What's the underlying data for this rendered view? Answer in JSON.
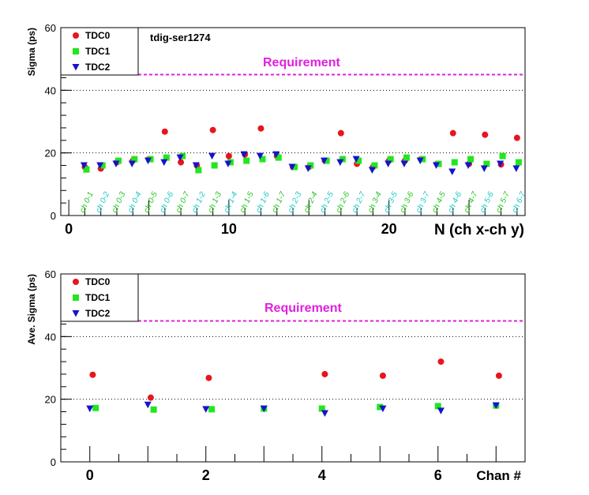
{
  "chart_data": [
    {
      "type": "scatter",
      "title": "tdig-ser1274",
      "xlabel": "N (ch x-ch y)",
      "ylabel": "Sigma (ps)",
      "xlim": [
        -0.5,
        28.5
      ],
      "ylim": [
        0,
        60
      ],
      "x_ticks": [
        0,
        10,
        20
      ],
      "y_ticks": [
        0,
        20,
        40,
        60
      ],
      "grid": "horizontal dotted",
      "legend_position": "top-left",
      "requirement": {
        "label": "Requirement",
        "value": 45,
        "color": "#e020e0"
      },
      "category_labels": [
        "ch 0-1",
        "ch 0-2",
        "ch 0-3",
        "ch 0-4",
        "ch 0-5",
        "ch 0-6",
        "ch 0-7",
        "ch 1-2",
        "ch 1-3",
        "ch 1-4",
        "ch 1-5",
        "ch 1-6",
        "ch 1-7",
        "ch 2-3",
        "ch 2-4",
        "ch 2-5",
        "ch 2-6",
        "ch 2-7",
        "ch 3-4",
        "ch 3-5",
        "ch 3-6",
        "ch 3-7",
        "ch 4-5",
        "ch 4-6",
        "ch 4-7",
        "ch 5-6",
        "ch 5-7",
        "ch 6-7"
      ],
      "category_x": [
        1,
        2,
        3,
        4,
        5,
        6,
        7,
        8,
        9,
        10,
        11,
        12,
        13,
        14,
        15,
        16,
        17,
        18,
        19,
        20,
        21,
        22,
        23,
        24,
        25,
        26,
        27,
        28
      ],
      "series": [
        {
          "name": "TDC0",
          "color": "#e8141e",
          "marker": "circle",
          "x": [
            1,
            2,
            3,
            4,
            5,
            6,
            7,
            8,
            9,
            10,
            11,
            12,
            13,
            14,
            15,
            16,
            17,
            18,
            19,
            20,
            21,
            22,
            23,
            24,
            25,
            26,
            27,
            28
          ],
          "values": [
            15.5,
            15.0,
            17.0,
            17.5,
            18.0,
            26.8,
            17.0,
            16.0,
            27.3,
            19.0,
            19.5,
            27.8,
            19.0,
            15.5,
            15.5,
            17.5,
            26.3,
            16.5,
            15.5,
            17.5,
            17.5,
            18.0,
            16.5,
            26.3,
            16.5,
            25.8,
            16.3,
            24.8
          ]
        },
        {
          "name": "TDC1",
          "color": "#22e61e",
          "marker": "square",
          "x": [
            1.1,
            2.1,
            3.1,
            4.1,
            5.1,
            6.1,
            7.1,
            8.1,
            9.1,
            10.1,
            11.1,
            12.1,
            13.1,
            14.1,
            15.1,
            16.1,
            17.1,
            18.1,
            19.1,
            20.1,
            21.1,
            22.1,
            23.1,
            24.1,
            25.1,
            26.1,
            27.1,
            28.1
          ],
          "values": [
            14.7,
            16.0,
            17.5,
            18.0,
            18.0,
            18.5,
            19.0,
            14.5,
            16.0,
            17.0,
            17.5,
            18.0,
            18.5,
            15.5,
            16.0,
            17.5,
            18.0,
            17.5,
            16.0,
            18.0,
            18.5,
            18.0,
            16.5,
            17.0,
            18.0,
            16.5,
            19.0,
            17.0
          ]
        },
        {
          "name": "TDC2",
          "color": "#1414cc",
          "marker": "triangle-down",
          "x": [
            0.95,
            1.95,
            2.95,
            3.95,
            4.95,
            5.95,
            6.95,
            7.95,
            8.95,
            9.95,
            10.95,
            11.95,
            12.95,
            13.95,
            14.95,
            15.95,
            16.95,
            17.95,
            18.95,
            19.95,
            20.95,
            21.95,
            22.95,
            23.95,
            24.95,
            25.95,
            26.95,
            27.95
          ],
          "values": [
            16.0,
            16.0,
            16.5,
            16.5,
            17.5,
            17.0,
            18.5,
            16.0,
            19.0,
            16.5,
            19.5,
            19.0,
            19.5,
            15.5,
            15.0,
            17.5,
            17.0,
            18.0,
            14.5,
            16.5,
            16.5,
            17.5,
            16.0,
            14.0,
            16.0,
            15.0,
            16.5,
            15.0
          ]
        }
      ]
    },
    {
      "type": "scatter",
      "xlabel": "Chan #",
      "ylabel": "Ave. Sigma (ps)",
      "xlim": [
        -0.5,
        7.5
      ],
      "ylim": [
        0,
        60
      ],
      "x_ticks": [
        0,
        2,
        4,
        6
      ],
      "y_ticks": [
        0,
        20,
        40,
        60
      ],
      "grid": "horizontal dotted",
      "legend_position": "top-left",
      "requirement": {
        "label": "Requirement",
        "value": 45,
        "color": "#e020e0"
      },
      "series": [
        {
          "name": "TDC0",
          "color": "#e8141e",
          "marker": "circle",
          "x": [
            0.05,
            1.05,
            2.05,
            4.05,
            5.05,
            6.05,
            7.05
          ],
          "values": [
            27.8,
            20.5,
            26.8,
            28.0,
            27.5,
            32.0,
            27.5
          ]
        },
        {
          "name": "TDC1",
          "color": "#22e61e",
          "marker": "square",
          "x": [
            0.1,
            1.1,
            2.1,
            3.0,
            4.0,
            5.0,
            6.0,
            7.0
          ],
          "values": [
            17.2,
            16.7,
            16.8,
            17.0,
            17.0,
            17.5,
            17.8,
            18.0
          ]
        },
        {
          "name": "TDC2",
          "color": "#1414cc",
          "marker": "triangle-down",
          "x": [
            0.0,
            1.0,
            2.0,
            3.0,
            4.05,
            5.05,
            6.05,
            7.0
          ],
          "values": [
            17.0,
            18.2,
            16.8,
            17.0,
            15.5,
            17.0,
            16.3,
            18.0
          ]
        }
      ]
    }
  ]
}
